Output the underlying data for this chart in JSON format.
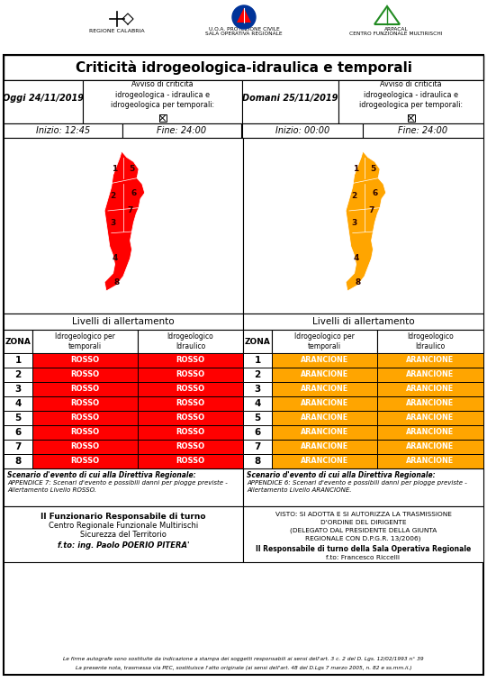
{
  "title": "Criticità idrogeologica-idraulica e temporali",
  "today_date": "Oggi 24/11/2019",
  "today_start": "Inizio: 12:45",
  "today_end": "Fine: 24:00",
  "today_alert_title": "Avviso di criticità\nidrogeologica - idraulica e\nidrogeologica per temporali:",
  "tomorrow_date": "Domani 25/11/2019",
  "tomorrow_start": "Inizio: 00:00",
  "tomorrow_end": "Fine: 24:00",
  "tomorrow_alert_title": "Avviso di criticità\nidrogeologica - idraulica e\nidrogeologica per temporali:",
  "zones": [
    1,
    2,
    3,
    4,
    5,
    6,
    7,
    8
  ],
  "today_color": "#FF0000",
  "tomorrow_color": "#FFA500",
  "today_label": "ROSSO",
  "tomorrow_label": "ARANCIONE",
  "col_header1": "Idrogeologico per\ntemporali",
  "col_header2": "Idrogeologico\nIdraulico",
  "zona_label": "ZONA",
  "livelli_label": "Livelli di allertamento",
  "scenario_today_title": "Scenario d'evento di cui alla Direttiva Regionale:",
  "scenario_today_text": "APPENDICE 7: Scenari d'evento e possibili danni per piogge previste -\nAllertamento Livello ROSSO.",
  "scenario_tomorrow_title": "Scenario d'evento di cui alla Direttiva Regionale:",
  "scenario_tomorrow_text": "APPENDICE 6: Scenari d'evento e possibili danni per piogge previste -\nAllertamento Livello ARANCIONE.",
  "funz_line1": "Il Funzionario Responsabile di turno",
  "funz_line2": "Centro Regionale Funzionale Multirischi",
  "funz_line3": "Sicurezza del Territorio",
  "funz_line4": "f.to: ing. Paolo POERIO PITERA'",
  "visto_line1": "VISTO: SI ADOTTA E SI AUTORIZZA LA TRASMISSIONE",
  "visto_line2": "D'ORDINE DEL DIRIGENTE",
  "visto_line3": "(DELEGATO DAL PRESIDENTE DELLA GIUNTA",
  "visto_line4": "REGIONALE CON D.P.G.R. 13/2006)",
  "visto_line5": "Il Responsabile di turno della Sala Operativa Regionale",
  "visto_line6": "f.to: Francesco Riccelli",
  "footer1": "Le firme autografe sono sostituite da indicazione a stampa dei soggetti responsabili ai sensi dell'art. 3 c. 2 del D. Lgs. 12/02/1993 n° 39",
  "footer2": "La presente nota, trasmessa via PEC, sostituisce l'atto originale (ai sensi dell'art. 48 del D.Lgs 7 marzo 2005, n. 82 e ss.mm.ii.)",
  "bg_color": "#FFFFFF",
  "regione_label": "REGIONE CALABRIA",
  "pc_label": "U.O.A. PROTEZIONE CIVILE\nSALA OPERATIVA REGIONALE",
  "arpacal_label": "ARPACAL\nCENTRO FUNZIONALE MULTIRISCHI"
}
